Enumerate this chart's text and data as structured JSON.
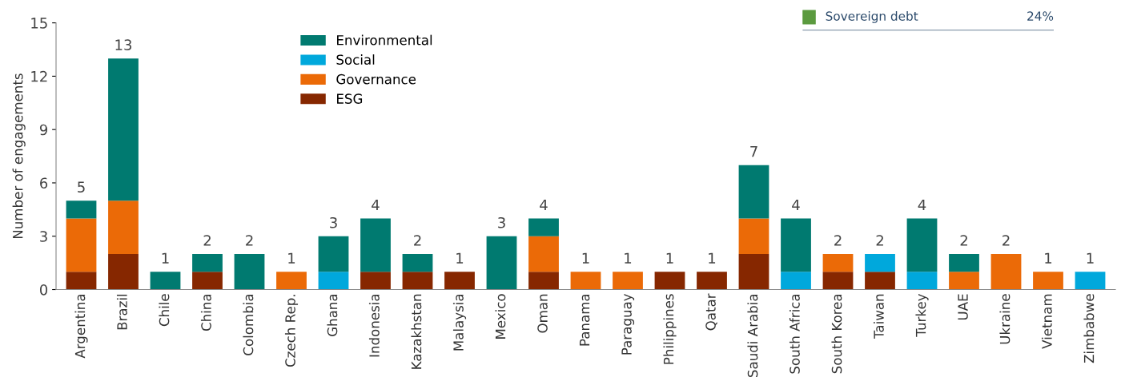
{
  "chart_data": [
    {
      "type": "bar",
      "stacked": true,
      "ylabel": "Number of engagements",
      "categories": [
        "Argentina",
        "Brazil",
        "Chile",
        "China",
        "Colombia",
        "Czech Rep.",
        "Ghana",
        "Indonesia",
        "Kazakhstan",
        "Malaysia",
        "Mexico",
        "Oman",
        "Panama",
        "Paraguay",
        "Philippines",
        "Qatar",
        "Saudi Arabia",
        "South Africa",
        "South Korea",
        "Taiwan",
        "Turkey",
        "UAE",
        "Ukraine",
        "Vietnam",
        "Zimbabwe"
      ],
      "series": [
        {
          "name": "ESG",
          "color": "#862700",
          "values": [
            1,
            2,
            0,
            1,
            0,
            0,
            0,
            1,
            1,
            1,
            0,
            1,
            0,
            0,
            1,
            1,
            2,
            0,
            1,
            1,
            0,
            0,
            0,
            0,
            0
          ]
        },
        {
          "name": "Governance",
          "color": "#eb6a07",
          "values": [
            3,
            3,
            0,
            0,
            0,
            1,
            0,
            0,
            0,
            0,
            0,
            2,
            1,
            1,
            0,
            0,
            2,
            0,
            1,
            0,
            0,
            1,
            2,
            1,
            0
          ]
        },
        {
          "name": "Social",
          "color": "#00a8dc",
          "values": [
            0,
            0,
            0,
            0,
            0,
            0,
            1,
            0,
            0,
            0,
            0,
            0,
            0,
            0,
            0,
            0,
            0,
            1,
            0,
            1,
            1,
            0,
            0,
            0,
            1
          ]
        },
        {
          "name": "Environmental",
          "color": "#007a70",
          "values": [
            1,
            8,
            1,
            1,
            2,
            0,
            2,
            3,
            1,
            0,
            3,
            1,
            0,
            0,
            0,
            0,
            3,
            3,
            0,
            0,
            3,
            1,
            0,
            0,
            0
          ]
        }
      ],
      "totals": [
        "5",
        "13",
        "1",
        "2",
        "2",
        "1",
        "3",
        "4",
        "2",
        "1",
        "3",
        "4",
        "1",
        "1",
        "1",
        "1",
        "7",
        "4",
        "2",
        "2",
        "4",
        "2",
        "2",
        "1",
        "1"
      ],
      "ylim": [
        0,
        15
      ],
      "yticks": [
        0,
        3,
        6,
        9,
        12,
        15
      ],
      "grid": false,
      "legend": "top left"
    },
    {
      "type": "other",
      "categories": [
        "Sovereign debt"
      ],
      "value_labels": [
        "24%"
      ],
      "colors": [
        "#5b9a3f"
      ]
    }
  ]
}
